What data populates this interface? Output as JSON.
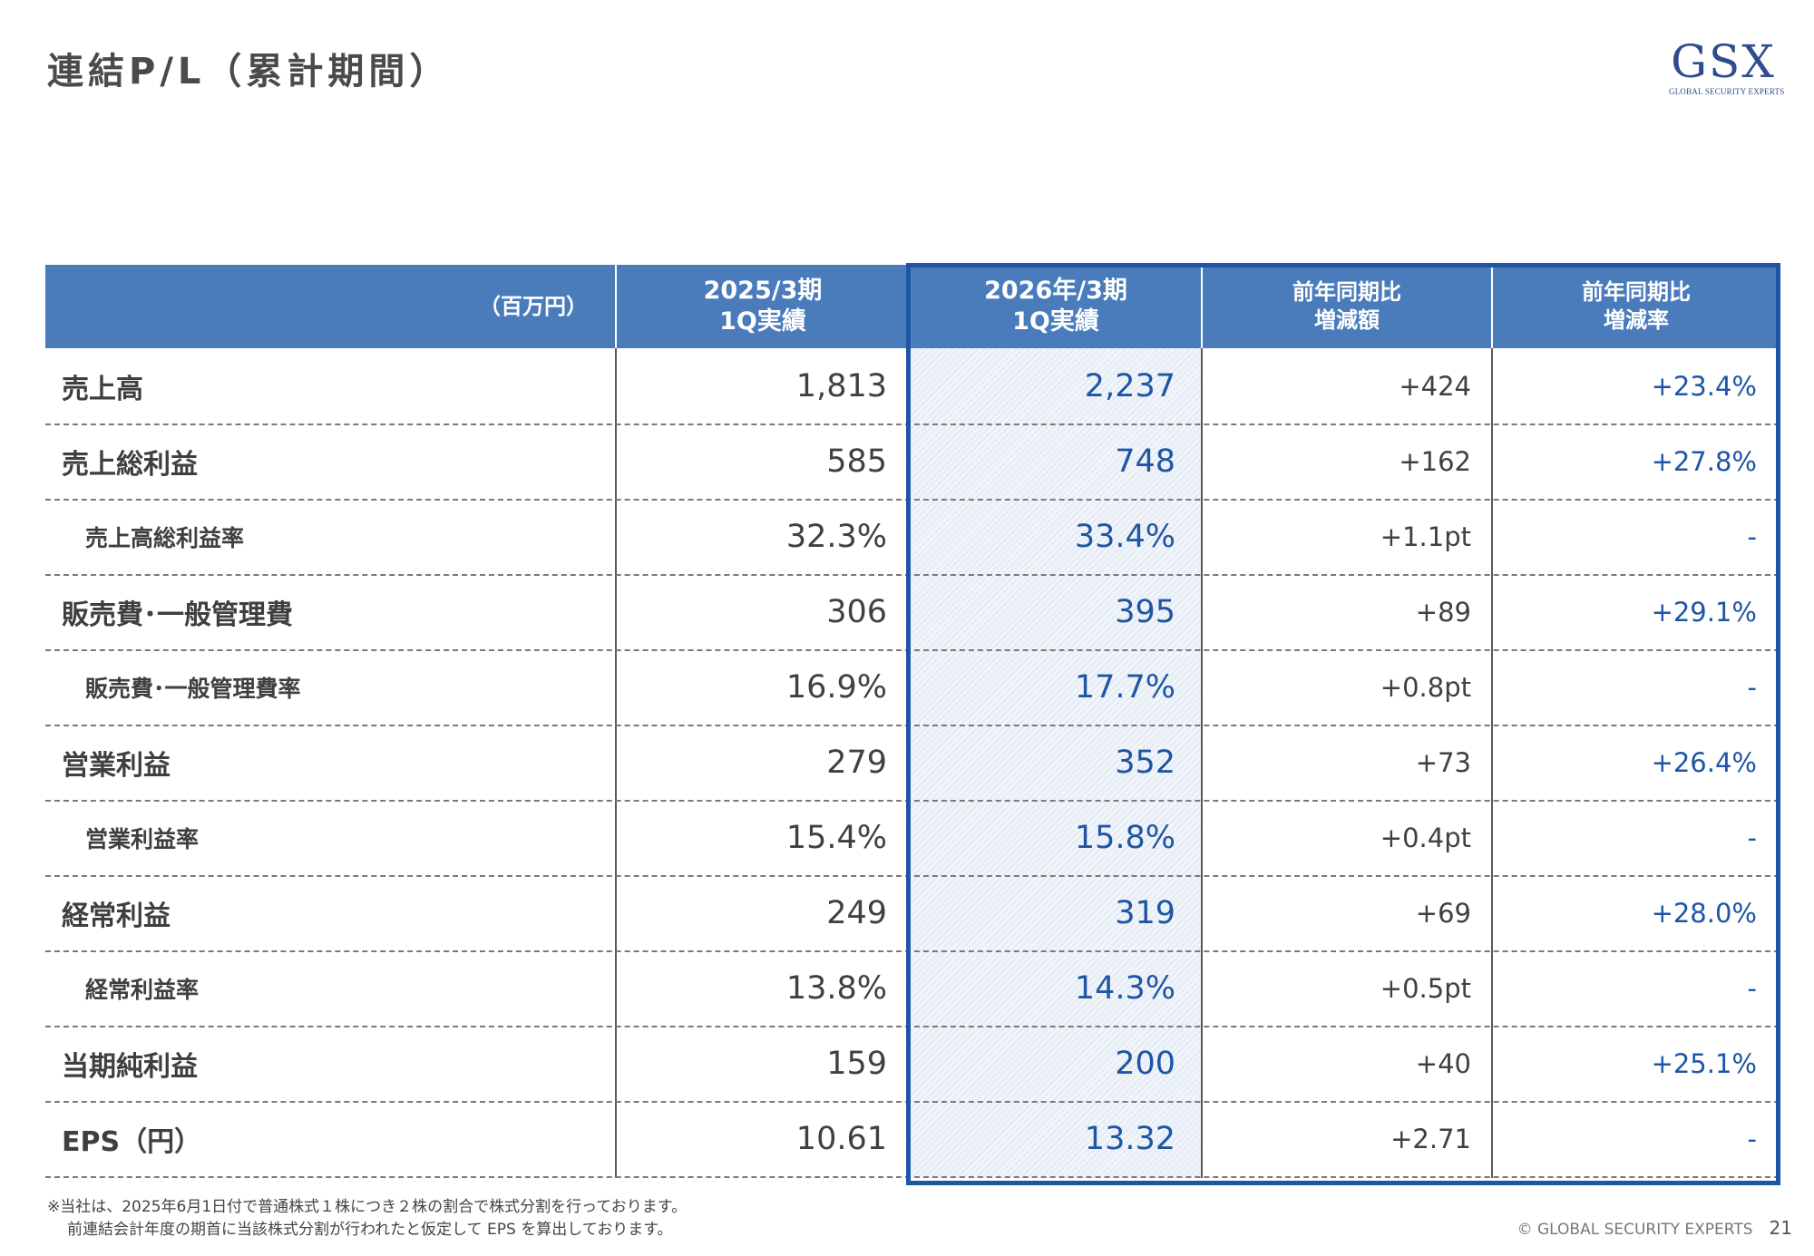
{
  "title": "連結P/L（累計期間）",
  "logo": {
    "mark": "GSX",
    "sub": "GLOBAL SECURITY EXPERTS"
  },
  "table": {
    "header": {
      "unit": "（百万円）",
      "col1": [
        "2025/3期",
        "1Q実績"
      ],
      "col2": [
        "2026年/3期",
        "1Q実績"
      ],
      "col3": [
        "前年同期比",
        "増減額"
      ],
      "col4": [
        "前年同期比",
        "増減率"
      ]
    },
    "rows": [
      {
        "label": "売上高",
        "sub": false,
        "fy25": "1,813",
        "fy26": "2,237",
        "diff": "+424",
        "rate": "+23.4%"
      },
      {
        "label": "売上総利益",
        "sub": false,
        "fy25": "585",
        "fy26": "748",
        "diff": "+162",
        "rate": "+27.8%"
      },
      {
        "label": "売上高総利益率",
        "sub": true,
        "fy25": "32.3%",
        "fy26": "33.4%",
        "diff": "+1.1pt",
        "rate": "-"
      },
      {
        "label": "販売費･一般管理費",
        "sub": false,
        "fy25": "306",
        "fy26": "395",
        "diff": "+89",
        "rate": "+29.1%"
      },
      {
        "label": "販売費･一般管理費率",
        "sub": true,
        "fy25": "16.9%",
        "fy26": "17.7%",
        "diff": "+0.8pt",
        "rate": "-"
      },
      {
        "label": "営業利益",
        "sub": false,
        "fy25": "279",
        "fy26": "352",
        "diff": "+73",
        "rate": "+26.4%"
      },
      {
        "label": "営業利益率",
        "sub": true,
        "fy25": "15.4%",
        "fy26": "15.8%",
        "diff": "+0.4pt",
        "rate": "-"
      },
      {
        "label": "経常利益",
        "sub": false,
        "fy25": "249",
        "fy26": "319",
        "diff": "+69",
        "rate": "+28.0%"
      },
      {
        "label": "経常利益率",
        "sub": true,
        "fy25": "13.8%",
        "fy26": "14.3%",
        "diff": "+0.5pt",
        "rate": "-"
      },
      {
        "label": "当期純利益",
        "sub": false,
        "fy25": "159",
        "fy26": "200",
        "diff": "+40",
        "rate": "+25.1%"
      },
      {
        "label": "EPS（円）",
        "sub": false,
        "fy25": "10.61",
        "fy26": "13.32",
        "diff": "+2.71",
        "rate": "-"
      }
    ]
  },
  "note": {
    "line1": "※当社は、2025年6月1日付で普通株式１株につき２株の割合で株式分割を行っております。",
    "line2": "前連結会計年度の期首に当該株式分割が行われたと仮定して EPS を算出しております。"
  },
  "footer": {
    "copyright": "© GLOBAL SECURITY EXPERTS",
    "page": "21"
  },
  "colors": {
    "header": "#4a7bbb",
    "accent": "#1f55a5",
    "text": "#3f3f3f"
  }
}
